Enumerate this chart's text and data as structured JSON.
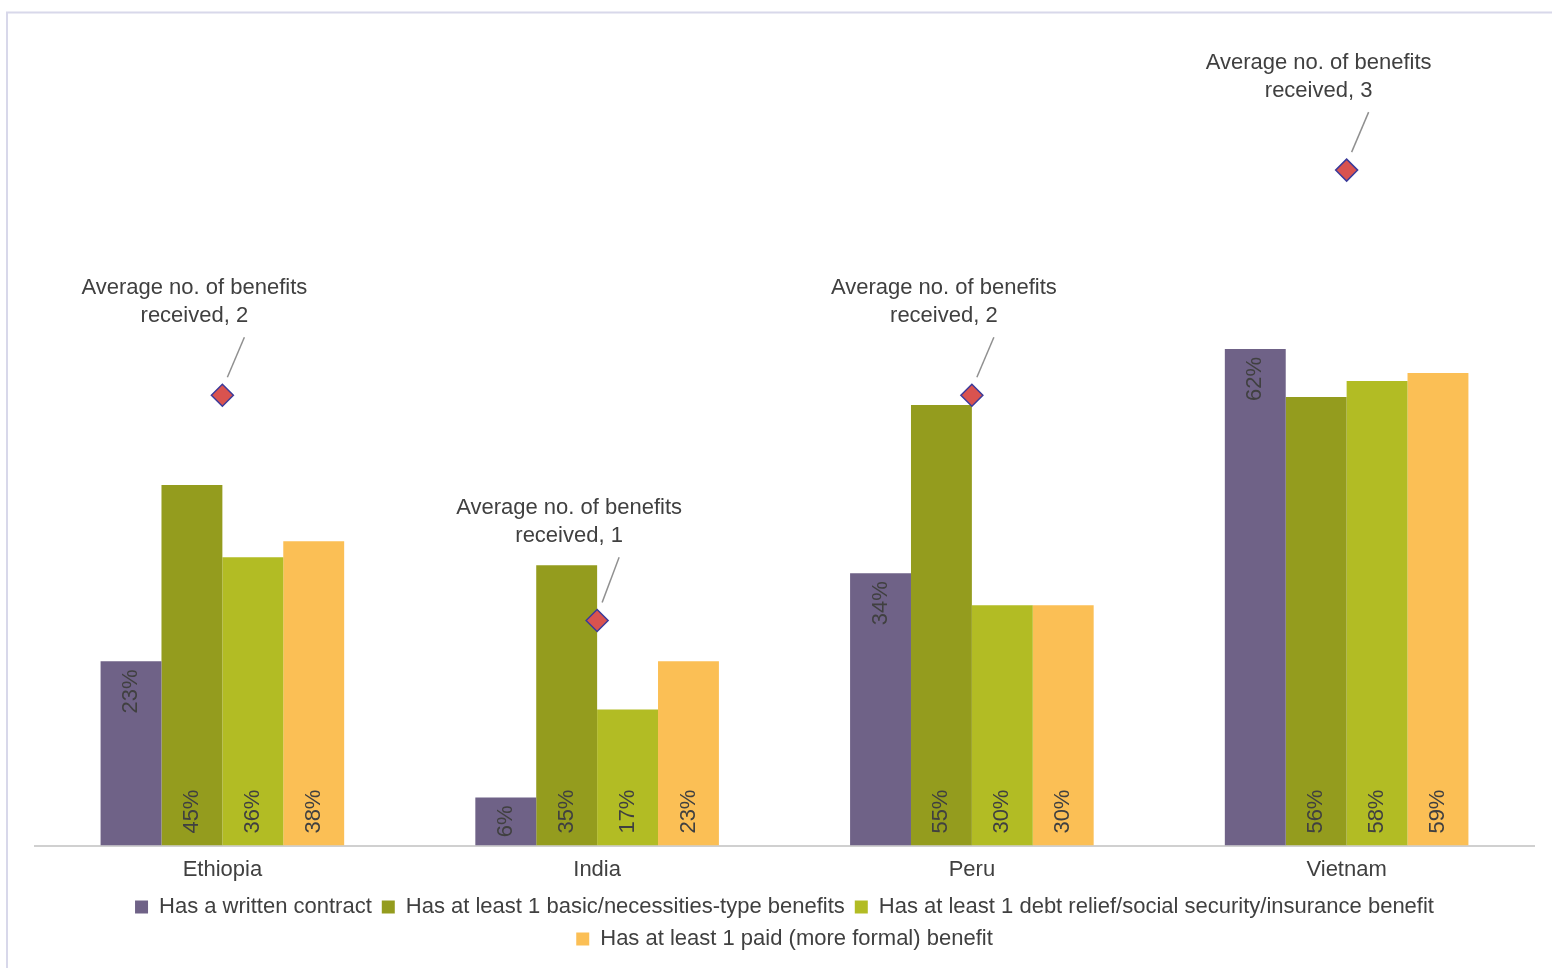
{
  "chart_data": {
    "type": "bar",
    "categories": [
      "Ethiopia",
      "India",
      "Peru",
      "Vietnam"
    ],
    "series": [
      {
        "name": "Has a written contract",
        "color": "#6f6287",
        "values": [
          23,
          6,
          34,
          62
        ],
        "value_labels": [
          "23%",
          "6%",
          "34%",
          "62%"
        ]
      },
      {
        "name": "Has at least 1 basic/necessities-type benefits",
        "color": "#949c1e",
        "values": [
          45,
          35,
          55,
          56
        ],
        "value_labels": [
          "45%",
          "35%",
          "55%",
          "56%"
        ]
      },
      {
        "name": "Has at least 1 debt relief/social security/insurance benefit",
        "color": "#b2bc24",
        "values": [
          36,
          17,
          30,
          58
        ],
        "value_labels": [
          "36%",
          "17%",
          "30%",
          "58%"
        ]
      },
      {
        "name": "Has at least 1 paid (more formal) benefit",
        "color": "#fbbf55",
        "values": [
          38,
          23,
          30,
          59
        ],
        "value_labels": [
          "38%",
          "23%",
          "30%",
          "59%"
        ]
      },
      {
        "type": "scatter",
        "axis": "y2",
        "marker": "diamond",
        "color": "#d9534f",
        "values": [
          2,
          1,
          2,
          3
        ],
        "value_labels": [
          "Average no. of benefits received, 2",
          "Average no. of benefits received, 1",
          "Average no. of benefits received, 2",
          "Average no. of benefits received, 3"
        ]
      }
    ],
    "ylim": [
      0,
      104
    ],
    "y2lim": [
      0,
      3.7
    ],
    "tick_labels": "x",
    "legend": "bottom"
  }
}
